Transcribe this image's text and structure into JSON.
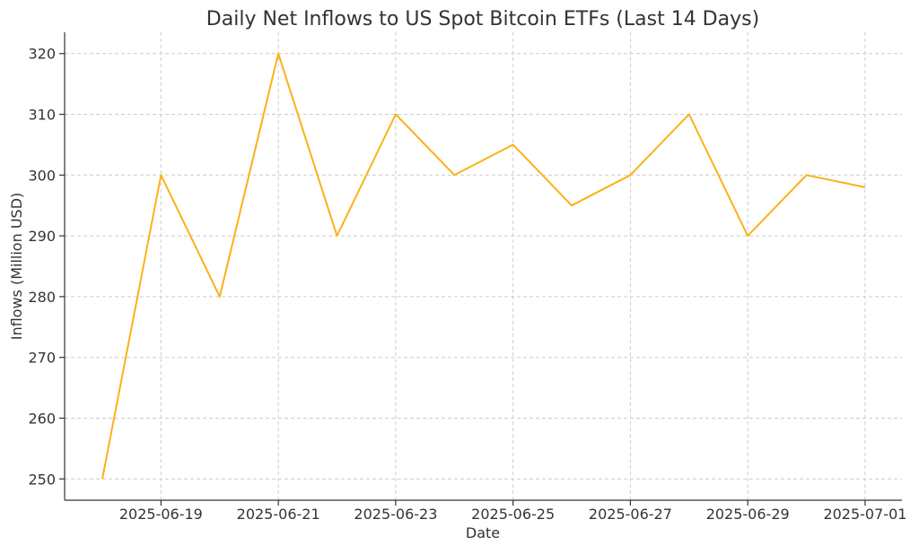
{
  "chart_data": {
    "type": "line",
    "title": "Daily Net Inflows to US Spot Bitcoin ETFs (Last 14 Days)",
    "xlabel": "Date",
    "ylabel": "Inflows (Million USD)",
    "x": [
      "2025-06-18",
      "2025-06-19",
      "2025-06-20",
      "2025-06-21",
      "2025-06-22",
      "2025-06-23",
      "2025-06-24",
      "2025-06-25",
      "2025-06-26",
      "2025-06-27",
      "2025-06-28",
      "2025-06-29",
      "2025-06-30",
      "2025-07-01"
    ],
    "series": [
      {
        "values": [
          250,
          300,
          280,
          320,
          290,
          310,
          300,
          305,
          295,
          300,
          310,
          290,
          300,
          298
        ],
        "color": "#FBB117"
      }
    ],
    "x_ticks": [
      "2025-06-19",
      "2025-06-21",
      "2025-06-23",
      "2025-06-25",
      "2025-06-27",
      "2025-06-29",
      "2025-07-01"
    ],
    "y_ticks": [
      250,
      260,
      270,
      280,
      290,
      300,
      310,
      320
    ],
    "ylim": [
      246.5,
      323.5
    ],
    "grid": true,
    "legend": "none"
  }
}
